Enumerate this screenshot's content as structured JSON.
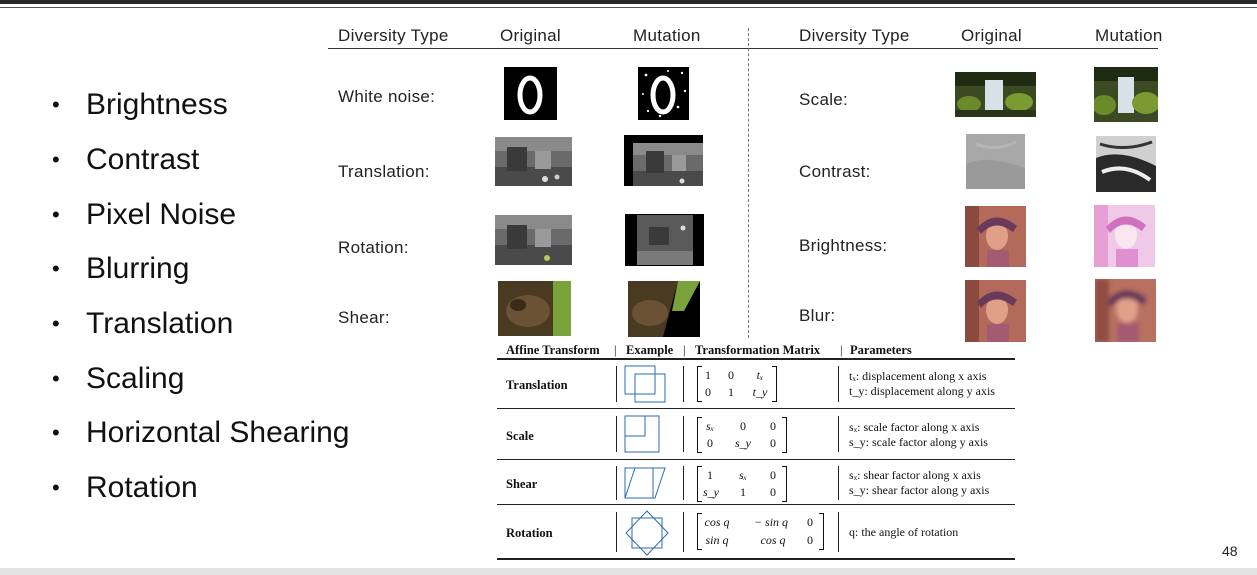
{
  "slide_number": "48",
  "bullets": [
    "Brightness",
    "Contrast",
    "Pixel Noise",
    "Blurring",
    "Translation",
    "Scaling",
    "Horizontal Shearing",
    "Rotation"
  ],
  "diversity_table": {
    "left_headers": {
      "type": "Diversity Type",
      "original": "Original",
      "mutation": "Mutation"
    },
    "right_headers": {
      "type": "Diversity Type",
      "original": "Original",
      "mutation": "Mutation"
    },
    "left_rows": [
      "White noise:",
      "Translation:",
      "Rotation:",
      "Shear:"
    ],
    "right_rows": [
      "Scale:",
      "Contrast:",
      "Brightness:",
      "Blur:"
    ]
  },
  "affine_table": {
    "headers": {
      "transform": "Affine Transform",
      "example": "Example",
      "matrix": "Transformation Matrix",
      "parameters": "Parameters"
    },
    "rows": [
      {
        "name": "Translation",
        "matrix": [
          "1",
          "0",
          "tₓ",
          "0",
          "1",
          "t_y"
        ],
        "params": [
          "tₓ: displacement along x axis",
          "t_y: displacement along y axis"
        ]
      },
      {
        "name": "Scale",
        "matrix": [
          "sₓ",
          "0",
          "0",
          "0",
          "s_y",
          "0"
        ],
        "params": [
          "sₓ: scale factor along x axis",
          "s_y: scale factor along y axis"
        ]
      },
      {
        "name": "Shear",
        "matrix": [
          "1",
          "sₓ",
          "0",
          "s_y",
          "1",
          "0"
        ],
        "params": [
          "sₓ: shear factor along x axis",
          "s_y: shear factor along y axis"
        ]
      },
      {
        "name": "Rotation",
        "matrix": [
          "cos q",
          "− sin q",
          "0",
          "sin q",
          "cos q",
          "0"
        ],
        "params": [
          "q: the angle of rotation"
        ]
      }
    ]
  }
}
